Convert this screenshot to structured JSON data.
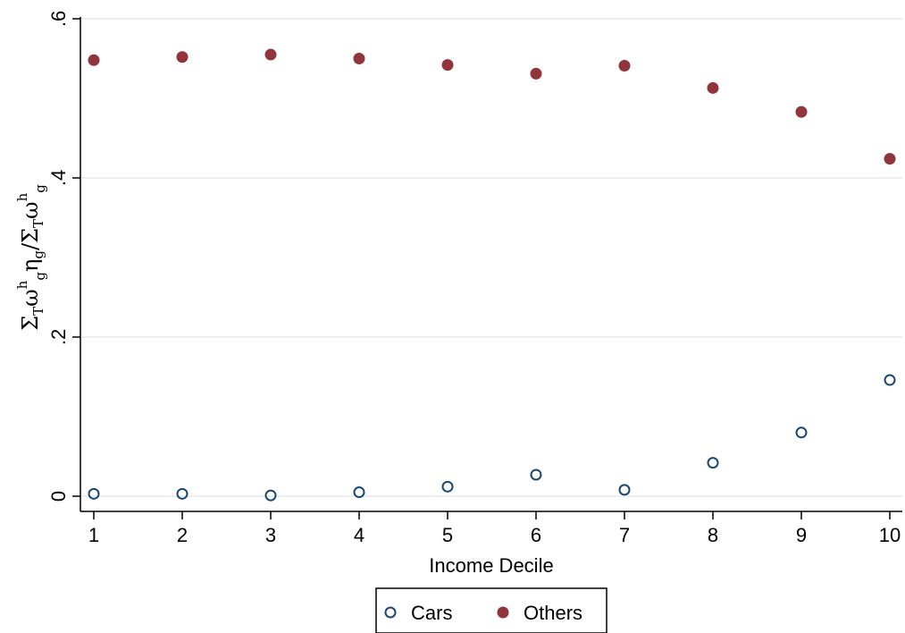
{
  "chart_data": {
    "type": "scatter",
    "xlabel": "Income Decile",
    "ylabel_parts": {
      "sigma1": "Σ",
      "sub1": "T",
      "omega1": "ω",
      "sup1": "h",
      "sub2": "g",
      "eta": "η",
      "sub3": "g",
      "slash": "/",
      "sigma2": "Σ",
      "sub4": "T",
      "omega2": "ω",
      "sup2": "h",
      "sub5": "g"
    },
    "x": [
      1,
      2,
      3,
      4,
      5,
      6,
      7,
      8,
      9,
      10
    ],
    "xlim": [
      1,
      10
    ],
    "ylim": [
      0,
      0.6
    ],
    "xticks": [
      1,
      2,
      3,
      4,
      5,
      6,
      7,
      8,
      9,
      10
    ],
    "xtick_labels": [
      "1",
      "2",
      "3",
      "4",
      "5",
      "6",
      "7",
      "8",
      "9",
      "10"
    ],
    "yticks": [
      0,
      0.2,
      0.4,
      0.6
    ],
    "ytick_labels": [
      "0",
      ".2",
      ".4",
      ".6"
    ],
    "grid": true,
    "legend_position": "bottom",
    "series": [
      {
        "name": "Cars",
        "marker": "hollow-circle",
        "color": "#1a476f",
        "values": [
          0.003,
          0.003,
          0.001,
          0.005,
          0.012,
          0.027,
          0.008,
          0.042,
          0.08,
          0.146
        ]
      },
      {
        "name": "Others",
        "marker": "filled-circle",
        "color": "#90353b",
        "values": [
          0.548,
          0.552,
          0.555,
          0.55,
          0.542,
          0.531,
          0.541,
          0.513,
          0.483,
          0.424
        ]
      }
    ]
  }
}
